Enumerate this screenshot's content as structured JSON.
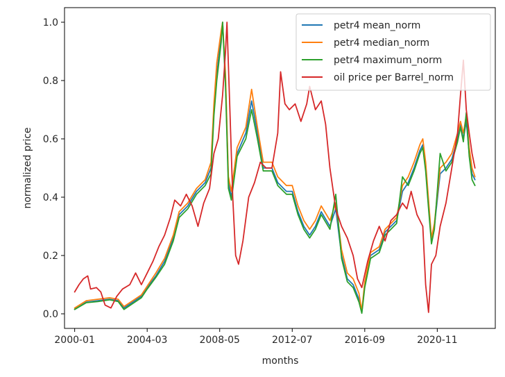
{
  "chart_data": {
    "type": "line",
    "title": "",
    "xlabel": "months",
    "ylabel": "normalized price",
    "x_ticks": [
      "2000-01",
      "2004-03",
      "2008-05",
      "2012-07",
      "2016-09",
      "2020-11"
    ],
    "x_tick_positions": [
      0,
      50,
      100,
      150,
      200,
      250
    ],
    "y_ticks": [
      "0.0",
      "0.2",
      "0.4",
      "0.6",
      "0.8",
      "1.0"
    ],
    "y_tick_values": [
      0.0,
      0.2,
      0.4,
      0.6,
      0.8,
      1.0
    ],
    "xlim": [
      -7,
      290
    ],
    "ylim": [
      -0.05,
      1.05
    ],
    "grid": false,
    "legend_position": "upper right",
    "colors": {
      "mean": "#1f77b4",
      "median": "#ff7f0e",
      "maximum": "#2ca02c",
      "oil": "#d62728"
    },
    "series": [
      {
        "name": "petr4 mean_norm",
        "color": "#1f77b4",
        "points": [
          [
            0,
            0.015
          ],
          [
            8,
            0.04
          ],
          [
            16,
            0.045
          ],
          [
            24,
            0.05
          ],
          [
            30,
            0.045
          ],
          [
            34,
            0.02
          ],
          [
            40,
            0.04
          ],
          [
            46,
            0.06
          ],
          [
            50,
            0.09
          ],
          [
            56,
            0.13
          ],
          [
            62,
            0.18
          ],
          [
            68,
            0.26
          ],
          [
            72,
            0.34
          ],
          [
            78,
            0.37
          ],
          [
            84,
            0.42
          ],
          [
            90,
            0.45
          ],
          [
            94,
            0.5
          ],
          [
            96,
            0.7
          ],
          [
            98,
            0.82
          ],
          [
            101,
            0.95
          ],
          [
            102,
            1.0
          ],
          [
            104,
            0.8
          ],
          [
            106,
            0.45
          ],
          [
            108,
            0.4
          ],
          [
            112,
            0.55
          ],
          [
            118,
            0.62
          ],
          [
            122,
            0.73
          ],
          [
            126,
            0.62
          ],
          [
            130,
            0.5
          ],
          [
            136,
            0.5
          ],
          [
            140,
            0.45
          ],
          [
            146,
            0.42
          ],
          [
            150,
            0.42
          ],
          [
            154,
            0.35
          ],
          [
            158,
            0.3
          ],
          [
            162,
            0.27
          ],
          [
            166,
            0.3
          ],
          [
            170,
            0.35
          ],
          [
            176,
            0.3
          ],
          [
            180,
            0.36
          ],
          [
            184,
            0.2
          ],
          [
            188,
            0.12
          ],
          [
            192,
            0.1
          ],
          [
            196,
            0.05
          ],
          [
            198,
            0.005
          ],
          [
            200,
            0.1
          ],
          [
            204,
            0.2
          ],
          [
            210,
            0.22
          ],
          [
            214,
            0.28
          ],
          [
            218,
            0.3
          ],
          [
            222,
            0.32
          ],
          [
            226,
            0.42
          ],
          [
            230,
            0.45
          ],
          [
            234,
            0.5
          ],
          [
            238,
            0.56
          ],
          [
            240,
            0.58
          ],
          [
            242,
            0.5
          ],
          [
            244,
            0.37
          ],
          [
            246,
            0.25
          ],
          [
            248,
            0.3
          ],
          [
            252,
            0.48
          ],
          [
            256,
            0.5
          ],
          [
            260,
            0.53
          ],
          [
            264,
            0.6
          ],
          [
            266,
            0.65
          ],
          [
            268,
            0.6
          ],
          [
            270,
            0.66
          ],
          [
            272,
            0.55
          ],
          [
            274,
            0.48
          ],
          [
            276,
            0.46
          ]
        ]
      },
      {
        "name": "petr4 median_norm",
        "color": "#ff7f0e",
        "points": [
          [
            0,
            0.02
          ],
          [
            8,
            0.045
          ],
          [
            16,
            0.05
          ],
          [
            24,
            0.055
          ],
          [
            30,
            0.05
          ],
          [
            34,
            0.025
          ],
          [
            40,
            0.045
          ],
          [
            46,
            0.065
          ],
          [
            50,
            0.095
          ],
          [
            56,
            0.14
          ],
          [
            62,
            0.19
          ],
          [
            68,
            0.27
          ],
          [
            72,
            0.35
          ],
          [
            78,
            0.38
          ],
          [
            84,
            0.43
          ],
          [
            90,
            0.46
          ],
          [
            94,
            0.52
          ],
          [
            96,
            0.72
          ],
          [
            98,
            0.86
          ],
          [
            101,
            0.97
          ],
          [
            102,
            1.0
          ],
          [
            104,
            0.82
          ],
          [
            106,
            0.47
          ],
          [
            108,
            0.42
          ],
          [
            112,
            0.57
          ],
          [
            118,
            0.64
          ],
          [
            122,
            0.77
          ],
          [
            126,
            0.64
          ],
          [
            130,
            0.52
          ],
          [
            136,
            0.52
          ],
          [
            140,
            0.47
          ],
          [
            146,
            0.44
          ],
          [
            150,
            0.44
          ],
          [
            154,
            0.37
          ],
          [
            158,
            0.32
          ],
          [
            162,
            0.29
          ],
          [
            166,
            0.32
          ],
          [
            170,
            0.37
          ],
          [
            176,
            0.32
          ],
          [
            180,
            0.38
          ],
          [
            184,
            0.22
          ],
          [
            188,
            0.14
          ],
          [
            192,
            0.12
          ],
          [
            196,
            0.07
          ],
          [
            198,
            0.01
          ],
          [
            200,
            0.11
          ],
          [
            204,
            0.21
          ],
          [
            210,
            0.23
          ],
          [
            214,
            0.29
          ],
          [
            218,
            0.31
          ],
          [
            222,
            0.33
          ],
          [
            226,
            0.44
          ],
          [
            230,
            0.47
          ],
          [
            234,
            0.52
          ],
          [
            238,
            0.58
          ],
          [
            240,
            0.6
          ],
          [
            242,
            0.52
          ],
          [
            244,
            0.39
          ],
          [
            246,
            0.26
          ],
          [
            248,
            0.31
          ],
          [
            252,
            0.5
          ],
          [
            256,
            0.52
          ],
          [
            260,
            0.55
          ],
          [
            264,
            0.62
          ],
          [
            266,
            0.66
          ],
          [
            268,
            0.62
          ],
          [
            270,
            0.68
          ],
          [
            272,
            0.57
          ],
          [
            274,
            0.5
          ],
          [
            276,
            0.47
          ]
        ]
      },
      {
        "name": "petr4 maximum_norm",
        "color": "#2ca02c",
        "points": [
          [
            0,
            0.015
          ],
          [
            8,
            0.038
          ],
          [
            16,
            0.042
          ],
          [
            24,
            0.048
          ],
          [
            30,
            0.042
          ],
          [
            34,
            0.015
          ],
          [
            40,
            0.035
          ],
          [
            46,
            0.055
          ],
          [
            50,
            0.085
          ],
          [
            56,
            0.125
          ],
          [
            62,
            0.17
          ],
          [
            68,
            0.25
          ],
          [
            72,
            0.33
          ],
          [
            78,
            0.36
          ],
          [
            84,
            0.41
          ],
          [
            90,
            0.44
          ],
          [
            94,
            0.48
          ],
          [
            96,
            0.68
          ],
          [
            98,
            0.8
          ],
          [
            101,
            0.93
          ],
          [
            102,
            1.0
          ],
          [
            104,
            0.78
          ],
          [
            106,
            0.43
          ],
          [
            108,
            0.39
          ],
          [
            112,
            0.54
          ],
          [
            118,
            0.6
          ],
          [
            122,
            0.7
          ],
          [
            126,
            0.6
          ],
          [
            130,
            0.49
          ],
          [
            136,
            0.49
          ],
          [
            140,
            0.44
          ],
          [
            146,
            0.41
          ],
          [
            150,
            0.41
          ],
          [
            154,
            0.34
          ],
          [
            158,
            0.29
          ],
          [
            162,
            0.26
          ],
          [
            166,
            0.29
          ],
          [
            170,
            0.34
          ],
          [
            176,
            0.29
          ],
          [
            180,
            0.41
          ],
          [
            184,
            0.19
          ],
          [
            188,
            0.11
          ],
          [
            192,
            0.09
          ],
          [
            196,
            0.04
          ],
          [
            198,
            0.002
          ],
          [
            200,
            0.09
          ],
          [
            204,
            0.19
          ],
          [
            210,
            0.21
          ],
          [
            214,
            0.27
          ],
          [
            218,
            0.29
          ],
          [
            222,
            0.31
          ],
          [
            226,
            0.47
          ],
          [
            230,
            0.44
          ],
          [
            234,
            0.49
          ],
          [
            238,
            0.55
          ],
          [
            240,
            0.57
          ],
          [
            242,
            0.49
          ],
          [
            244,
            0.36
          ],
          [
            246,
            0.24
          ],
          [
            248,
            0.29
          ],
          [
            252,
            0.55
          ],
          [
            256,
            0.49
          ],
          [
            260,
            0.52
          ],
          [
            264,
            0.59
          ],
          [
            266,
            0.64
          ],
          [
            268,
            0.59
          ],
          [
            270,
            0.69
          ],
          [
            272,
            0.54
          ],
          [
            274,
            0.46
          ],
          [
            276,
            0.44
          ]
        ]
      },
      {
        "name": "oil price per Barrel_norm",
        "color": "#d62728",
        "points": [
          [
            0,
            0.075
          ],
          [
            3,
            0.1
          ],
          [
            6,
            0.12
          ],
          [
            9,
            0.13
          ],
          [
            11,
            0.085
          ],
          [
            15,
            0.09
          ],
          [
            18,
            0.075
          ],
          [
            21,
            0.03
          ],
          [
            25,
            0.02
          ],
          [
            29,
            0.06
          ],
          [
            33,
            0.085
          ],
          [
            38,
            0.1
          ],
          [
            42,
            0.14
          ],
          [
            46,
            0.1
          ],
          [
            50,
            0.14
          ],
          [
            54,
            0.18
          ],
          [
            58,
            0.23
          ],
          [
            62,
            0.27
          ],
          [
            66,
            0.33
          ],
          [
            69,
            0.39
          ],
          [
            73,
            0.37
          ],
          [
            77,
            0.41
          ],
          [
            81,
            0.37
          ],
          [
            85,
            0.3
          ],
          [
            89,
            0.38
          ],
          [
            93,
            0.43
          ],
          [
            96,
            0.55
          ],
          [
            99,
            0.6
          ],
          [
            102,
            0.75
          ],
          [
            104,
            0.9
          ],
          [
            105,
            1.0
          ],
          [
            107,
            0.7
          ],
          [
            109,
            0.4
          ],
          [
            111,
            0.2
          ],
          [
            113,
            0.17
          ],
          [
            116,
            0.25
          ],
          [
            120,
            0.4
          ],
          [
            124,
            0.45
          ],
          [
            128,
            0.52
          ],
          [
            132,
            0.5
          ],
          [
            136,
            0.5
          ],
          [
            140,
            0.62
          ],
          [
            142,
            0.83
          ],
          [
            145,
            0.72
          ],
          [
            148,
            0.7
          ],
          [
            152,
            0.72
          ],
          [
            156,
            0.66
          ],
          [
            160,
            0.72
          ],
          [
            162,
            0.78
          ],
          [
            166,
            0.7
          ],
          [
            170,
            0.73
          ],
          [
            173,
            0.65
          ],
          [
            176,
            0.5
          ],
          [
            180,
            0.36
          ],
          [
            184,
            0.3
          ],
          [
            188,
            0.26
          ],
          [
            192,
            0.2
          ],
          [
            195,
            0.12
          ],
          [
            198,
            0.09
          ],
          [
            202,
            0.18
          ],
          [
            206,
            0.25
          ],
          [
            210,
            0.3
          ],
          [
            214,
            0.25
          ],
          [
            218,
            0.32
          ],
          [
            222,
            0.34
          ],
          [
            226,
            0.38
          ],
          [
            229,
            0.36
          ],
          [
            232,
            0.42
          ],
          [
            236,
            0.34
          ],
          [
            240,
            0.3
          ],
          [
            242,
            0.1
          ],
          [
            244,
            0.005
          ],
          [
            246,
            0.17
          ],
          [
            249,
            0.2
          ],
          [
            252,
            0.3
          ],
          [
            256,
            0.38
          ],
          [
            260,
            0.5
          ],
          [
            264,
            0.62
          ],
          [
            266,
            0.75
          ],
          [
            268,
            0.87
          ],
          [
            270,
            0.7
          ],
          [
            272,
            0.62
          ],
          [
            274,
            0.55
          ],
          [
            276,
            0.5
          ]
        ]
      }
    ]
  }
}
